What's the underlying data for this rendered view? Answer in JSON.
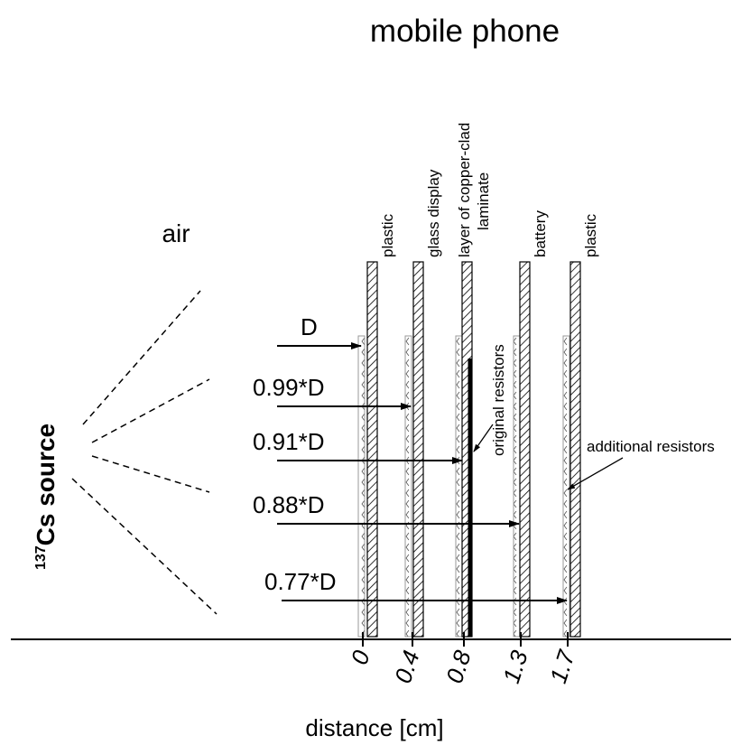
{
  "title": "mobile phone",
  "medium": "air",
  "source": {
    "isotope": "137",
    "label": "Cs source"
  },
  "layers": [
    "plastic",
    "glass display",
    "layer of copper-clad laminate",
    "battery",
    "plastic"
  ],
  "doses": [
    "D",
    "0.99*D",
    "0.91*D",
    "0.88*D",
    "0.77*D"
  ],
  "annotations": {
    "original": "original resistors",
    "additional": "additional resistors"
  },
  "axis": {
    "ticks": [
      "0",
      "0.4",
      "0.8",
      "1.3",
      "1.7"
    ],
    "label": "distance [cm]"
  }
}
